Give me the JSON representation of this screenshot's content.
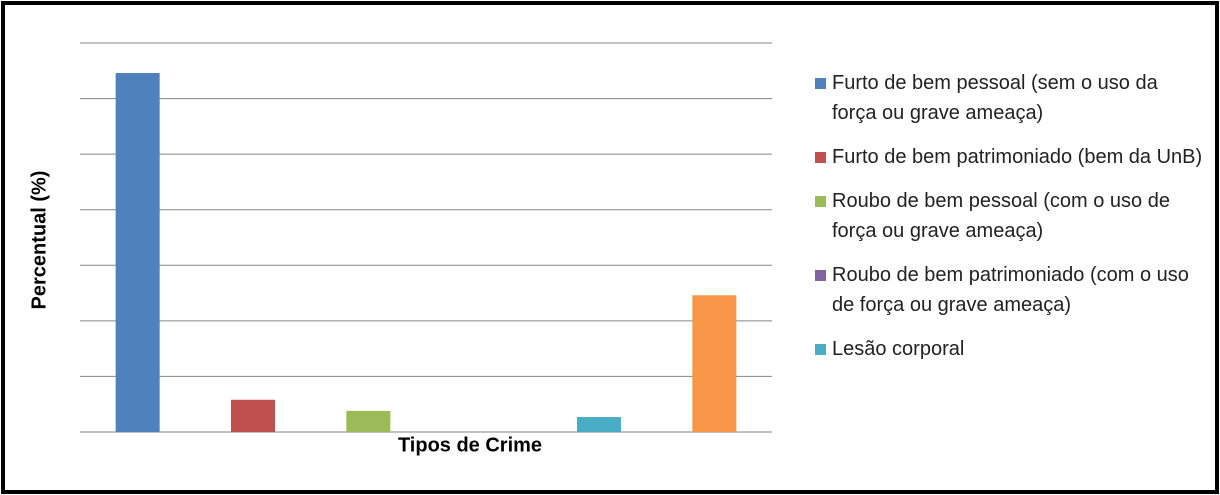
{
  "chart_data": {
    "type": "bar",
    "x_label": "Tipos de Crime",
    "y_label": "Percentual (%)",
    "series": [
      {
        "name": "Furto de bem pessoal (sem o uso da força ou grave ameaça)",
        "color": "#4f81bd",
        "values": [
          64.6
        ]
      },
      {
        "name": "Furto de bem patrimoniado (bem da UnB)",
        "color": "#c0504d",
        "values": [
          5.8
        ]
      },
      {
        "name": "Roubo de bem pessoal (com o uso de força ou grave ameaça)",
        "color": "#9bbb59",
        "values": [
          3.8
        ]
      },
      {
        "name": "Roubo de bem patrimoniado (com o uso de força ou grave ameaça)",
        "color": "#8064a2",
        "values": [
          0
        ]
      },
      {
        "name": "Lesão corporal",
        "color": "#4bacc6",
        "values": [
          2.7
        ]
      },
      {
        "name": null,
        "color": "#f79646",
        "values": [
          24.6
        ]
      }
    ],
    "ylim": [
      0,
      70
    ],
    "yticks": [
      0,
      10,
      20,
      30,
      40,
      50,
      60,
      70
    ],
    "grid": true,
    "legend": "right"
  }
}
